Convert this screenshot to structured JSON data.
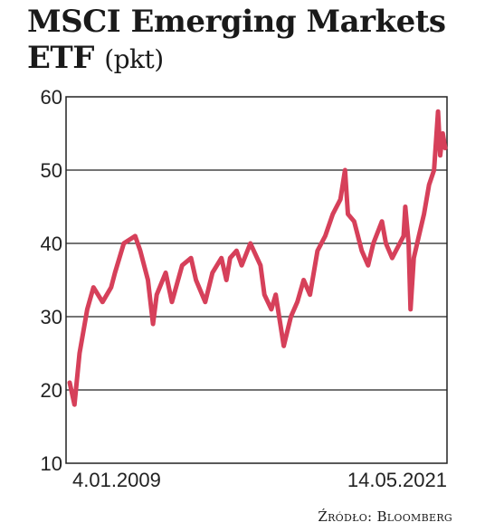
{
  "chart_data": {
    "type": "line",
    "title_line1": "MSCI Emerging Markets",
    "title_line2": "ETF",
    "unit": "(pkt)",
    "x_start_label": "4.01.2009",
    "x_end_label": "14.05.2021",
    "source": "Źródło: Bloomberg",
    "ylim": [
      10,
      60
    ],
    "yticks": [
      10,
      20,
      30,
      40,
      50,
      60
    ],
    "grid": true,
    "line_color": "#d6405a",
    "series": [
      {
        "x": [
          "2009-01-02",
          "2009-03-01",
          "2009-05-01",
          "2009-08-01",
          "2009-10-15",
          "2010-02-01",
          "2010-05-15",
          "2010-07-01",
          "2010-10-15",
          "2011-03-01",
          "2011-05-01",
          "2011-08-01",
          "2011-10-01",
          "2011-11-15",
          "2012-03-01",
          "2012-05-15",
          "2012-09-15",
          "2012-12-31",
          "2013-03-01",
          "2013-06-20",
          "2013-09-15",
          "2013-12-31",
          "2014-03-01",
          "2014-04-15",
          "2014-07-01",
          "2014-09-01",
          "2014-12-15",
          "2015-04-15",
          "2015-06-01",
          "2015-08-24",
          "2015-10-15",
          "2016-01-20",
          "2016-04-15",
          "2016-07-01",
          "2016-09-15",
          "2016-12-01",
          "2017-03-01",
          "2017-06-01",
          "2017-09-01",
          "2017-12-01",
          "2018-01-26",
          "2018-03-01",
          "2018-05-15",
          "2018-08-15",
          "2018-10-30",
          "2019-01-01",
          "2019-04-15",
          "2019-06-01",
          "2019-08-15",
          "2019-12-31",
          "2020-01-20",
          "2020-03-01",
          "2020-03-23",
          "2020-05-01",
          "2020-07-01",
          "2020-09-01",
          "2020-11-01",
          "2020-12-31",
          "2021-02-17",
          "2021-03-15",
          "2021-04-15",
          "2021-05-14"
        ],
        "values": [
          21,
          18,
          25,
          31,
          34,
          32,
          34,
          36,
          40,
          41,
          39,
          35,
          29,
          33,
          36,
          32,
          37,
          38,
          35,
          32,
          36,
          38,
          35,
          38,
          39,
          37,
          40,
          37,
          33,
          31,
          33,
          26,
          30,
          32,
          35,
          33,
          39,
          41,
          44,
          46,
          50,
          44,
          43,
          39,
          37,
          40,
          43,
          40,
          38,
          41,
          45,
          40,
          31,
          38,
          41,
          44,
          48,
          50,
          58,
          52,
          55,
          53
        ]
      }
    ]
  }
}
